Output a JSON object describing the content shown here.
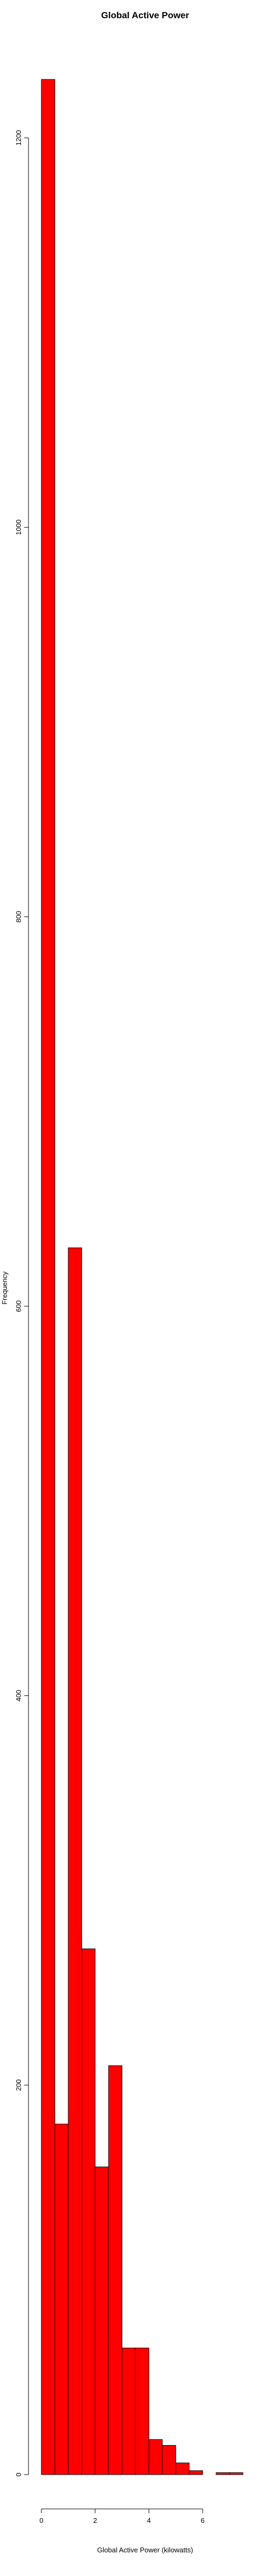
{
  "chart_data": {
    "type": "bar",
    "title": "Global Active Power",
    "xlabel": "Global Active Power (kilowatts)",
    "ylabel": "Frequency",
    "bin_edges": [
      0,
      0.5,
      1,
      1.5,
      2,
      2.5,
      3,
      3.5,
      4,
      4.5,
      5,
      5.5,
      6,
      6.5,
      7,
      7.5
    ],
    "values": [
      1230,
      180,
      630,
      270,
      158,
      210,
      65,
      65,
      18,
      15,
      6,
      2,
      0,
      1,
      1
    ],
    "xlim": [
      0,
      7.5
    ],
    "ylim": [
      0,
      1230
    ],
    "x_ticks": [
      0,
      2,
      4,
      6
    ],
    "y_ticks": [
      0,
      200,
      400,
      600,
      800,
      1000,
      1200
    ],
    "bar_color": "#ff0000",
    "edge_color": "#000000",
    "grid": false,
    "legend": "none"
  }
}
